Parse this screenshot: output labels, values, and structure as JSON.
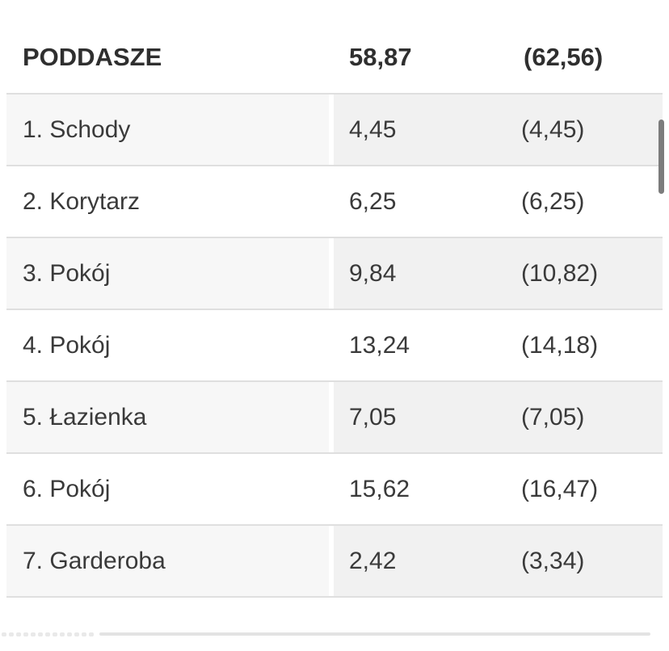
{
  "table": {
    "header": {
      "floor_name": "PODDASZE",
      "net_area": "58,87",
      "gross_area": "(62,56)"
    },
    "rows": [
      {
        "name": "1. Schody",
        "net_area": "4,45",
        "gross_area": "(4,45)"
      },
      {
        "name": "2. Korytarz",
        "net_area": "6,25",
        "gross_area": "(6,25)"
      },
      {
        "name": "3. Pokój",
        "net_area": "9,84",
        "gross_area": "(10,82)"
      },
      {
        "name": "4. Pokój",
        "net_area": "13,24",
        "gross_area": "(14,18)"
      },
      {
        "name": "5. Łazienka",
        "net_area": "7,05",
        "gross_area": "(7,05)"
      },
      {
        "name": "6. Pokój",
        "net_area": "15,62",
        "gross_area": "(16,47)"
      },
      {
        "name": "7. Garderoba",
        "net_area": "2,42",
        "gross_area": "(3,34)"
      }
    ]
  },
  "colors": {
    "text": "#3a3a3a",
    "header_text": "#2f2f2f",
    "row_alt_name_bg": "#f7f7f7",
    "row_alt_values_bg": "#f1f1f1",
    "separator": "#dfdfdf",
    "scrollbar_thumb": "#7c7c7c"
  }
}
